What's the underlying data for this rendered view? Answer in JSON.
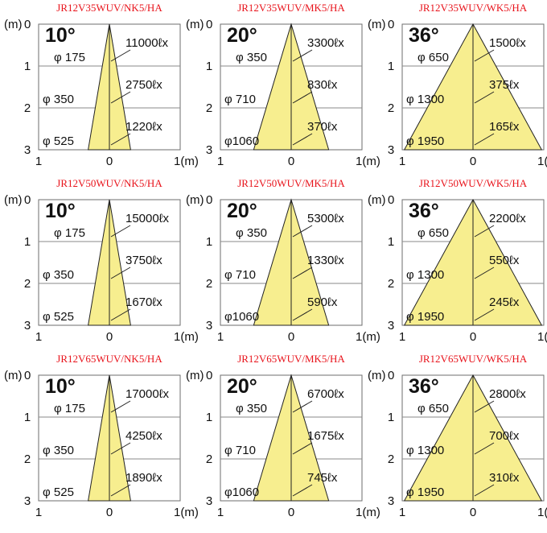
{
  "axis": {
    "unit_top": "(m)",
    "depth_ticks": [
      "0",
      "1",
      "2",
      "3"
    ],
    "x_ticks": [
      "1",
      "0",
      "1(m)"
    ]
  },
  "panels": [
    {
      "title": "JR12V35WUV/NK5/HA",
      "angle": "10°",
      "spread_m": 0.3,
      "diameters": [
        "φ 175",
        "φ 350",
        "φ 525"
      ],
      "lux": [
        "11000ℓx",
        "2750ℓx",
        "1220ℓx"
      ]
    },
    {
      "title": "JR12V35WUV/MK5/HA",
      "angle": "20°",
      "spread_m": 0.53,
      "diameters": [
        "φ 350",
        "φ 710",
        "φ1060"
      ],
      "lux": [
        "3300ℓx",
        "830ℓx",
        "370ℓx"
      ]
    },
    {
      "title": "JR12V35WUV/WK5/HA",
      "angle": "36°",
      "spread_m": 0.97,
      "diameters": [
        "φ 650",
        "φ 1300",
        "φ 1950"
      ],
      "lux": [
        "1500ℓx",
        "375ℓx",
        "165ℓx"
      ]
    },
    {
      "title": "JR12V50WUV/NK5/HA",
      "angle": "10°",
      "spread_m": 0.3,
      "diameters": [
        "φ 175",
        "φ 350",
        "φ 525"
      ],
      "lux": [
        "15000ℓx",
        "3750ℓx",
        "1670ℓx"
      ]
    },
    {
      "title": "JR12V50WUV/MK5/HA",
      "angle": "20°",
      "spread_m": 0.53,
      "diameters": [
        "φ 350",
        "φ 710",
        "φ1060"
      ],
      "lux": [
        "5300ℓx",
        "1330ℓx",
        "590ℓx"
      ]
    },
    {
      "title": "JR12V50WUV/WK5/HA",
      "angle": "36°",
      "spread_m": 0.97,
      "diameters": [
        "φ 650",
        "φ 1300",
        "φ 1950"
      ],
      "lux": [
        "2200ℓx",
        "550ℓx",
        "245ℓx"
      ]
    },
    {
      "title": "JR12V65WUV/NK5/HA",
      "angle": "10°",
      "spread_m": 0.3,
      "diameters": [
        "φ 175",
        "φ 350",
        "φ 525"
      ],
      "lux": [
        "17000ℓx",
        "4250ℓx",
        "1890ℓx"
      ]
    },
    {
      "title": "JR12V65WUV/MK5/HA",
      "angle": "20°",
      "spread_m": 0.53,
      "diameters": [
        "φ 350",
        "φ 710",
        "φ1060"
      ],
      "lux": [
        "6700ℓx",
        "1675ℓx",
        "745ℓx"
      ]
    },
    {
      "title": "JR12V65WUV/WK5/HA",
      "angle": "36°",
      "spread_m": 0.97,
      "diameters": [
        "φ 650",
        "φ 1300",
        "φ 1950"
      ],
      "lux": [
        "2800ℓx",
        "700ℓx",
        "310ℓx"
      ]
    }
  ]
}
